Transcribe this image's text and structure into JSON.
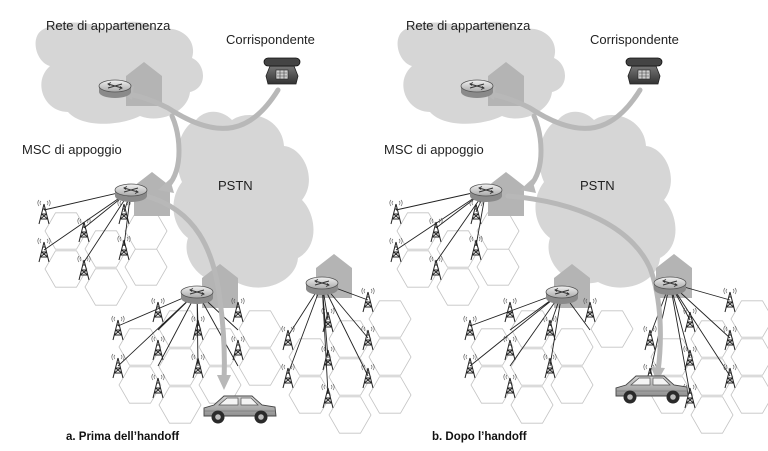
{
  "labels": {
    "home_network": "Rete di appartenenza",
    "correspondent": "Corrispondente",
    "anchor_msc": "MSC di appoggio",
    "pstn": "PSTN"
  },
  "panels": [
    {
      "id": "a",
      "caption": "a.  Prima dell’handoff"
    },
    {
      "id": "b",
      "caption": "b.  Dopo l’handoff"
    }
  ],
  "icons": [
    "telephone-icon",
    "router-icon",
    "cell-tower-icon",
    "car-icon",
    "building-icon"
  ],
  "colors": {
    "cloud": "#d6d6d6",
    "arrow": "#b8b8b8",
    "building": "#b4b4b4",
    "hex_border": "#c4c4c4"
  }
}
